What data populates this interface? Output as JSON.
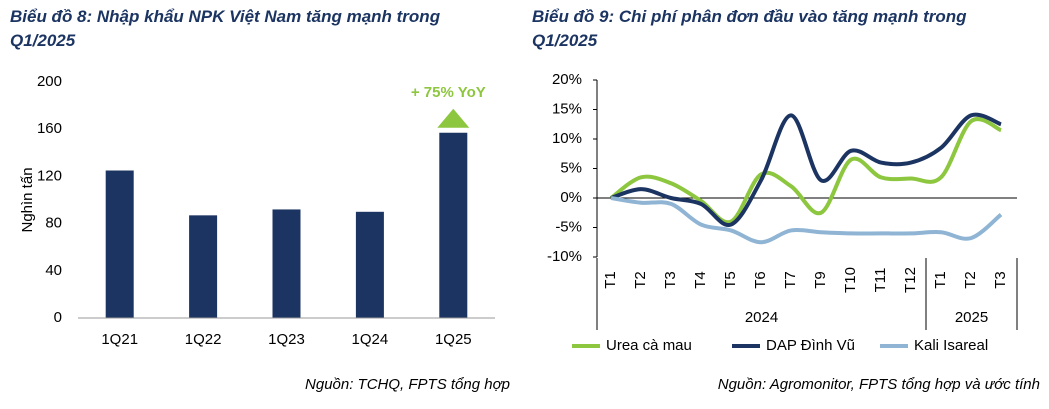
{
  "chart_data": [
    {
      "type": "bar",
      "title": "Biểu đồ 8: Nhập khẩu NPK Việt Nam tăng mạnh trong Q1/2025",
      "ylabel": "Nghìn tấn",
      "categories": [
        "1Q21",
        "1Q22",
        "1Q23",
        "1Q24",
        "1Q25"
      ],
      "values": [
        125,
        87,
        92,
        90,
        157
      ],
      "color": "#1b3461",
      "ylim": [
        0,
        200
      ],
      "yticks": [
        0,
        40,
        80,
        120,
        160,
        200
      ],
      "annotation": "+ 75% YoY",
      "annotation_color": "#8dc63f",
      "source": "Nguồn: TCHQ, FPTS tổng hợp"
    },
    {
      "type": "line",
      "title": "Biểu đồ 9: Chi phí phân đơn đầu vào tăng mạnh trong Q1/2025",
      "categories": [
        "T1",
        "T2",
        "T3",
        "T4",
        "T5",
        "T6",
        "T7",
        "T9",
        "T10",
        "T11",
        "T12",
        "T1",
        "T2",
        "T3"
      ],
      "groups": [
        {
          "label": "2024",
          "span": 11
        },
        {
          "label": "2025",
          "span": 3
        }
      ],
      "series": [
        {
          "name": "Urea cà mau",
          "color": "#8dc63f",
          "values": [
            0,
            3.5,
            2.5,
            -0.5,
            -4,
            4,
            2,
            -2.5,
            6.5,
            3.5,
            3.3,
            3.5,
            13,
            11.5
          ]
        },
        {
          "name": "DAP Đình Vũ",
          "color": "#1b3461",
          "values": [
            0,
            1.5,
            0,
            -1,
            -4.5,
            3,
            14,
            3,
            8,
            6,
            6,
            8.5,
            14,
            12.5
          ]
        },
        {
          "name": "Kali Isareal",
          "color": "#8fb4d4",
          "values": [
            0,
            -0.8,
            -1,
            -4.5,
            -5.5,
            -7.5,
            -5.5,
            -5.8,
            -6,
            -6,
            -6,
            -5.8,
            -6.8,
            -2.8
          ]
        }
      ],
      "ylim": [
        -10,
        20
      ],
      "yticks": [
        {
          "value": -10,
          "label": "-10%"
        },
        {
          "value": -5,
          "label": "-5%"
        },
        {
          "value": 0,
          "label": "0%"
        },
        {
          "value": 5,
          "label": "5%"
        },
        {
          "value": 10,
          "label": "10%"
        },
        {
          "value": 15,
          "label": "15%"
        },
        {
          "value": 20,
          "label": "20%"
        }
      ],
      "legend": "bottom",
      "source": "Nguồn: Agromonitor, FPTS tổng hợp và ước tính"
    }
  ]
}
